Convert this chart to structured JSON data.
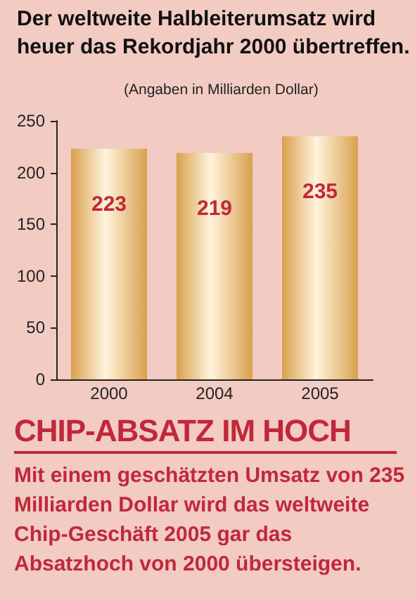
{
  "chart_data": {
    "type": "bar",
    "title": "Der weltweite Halbleiterumsatz wird heuer das Rekordjahr 2000 übertreffen.",
    "subtitle": "(Angaben in Milliarden Dollar)",
    "categories": [
      "2000",
      "2004",
      "2005"
    ],
    "values": [
      223,
      219,
      235
    ],
    "color": "#d9a04e",
    "ylim": [
      0,
      250
    ],
    "yticks": [
      0,
      50,
      100,
      150,
      200,
      250
    ],
    "grid": false,
    "data_labels": true,
    "annotations": [
      "CHIP-ABSATZ IM HOCH",
      "Mit einem geschätzten Umsatz von 235 Milliarden Dollar wird das weltweite Chip-Geschäft 2005 gar das Absatzhoch von 2000 übersteigen."
    ]
  }
}
